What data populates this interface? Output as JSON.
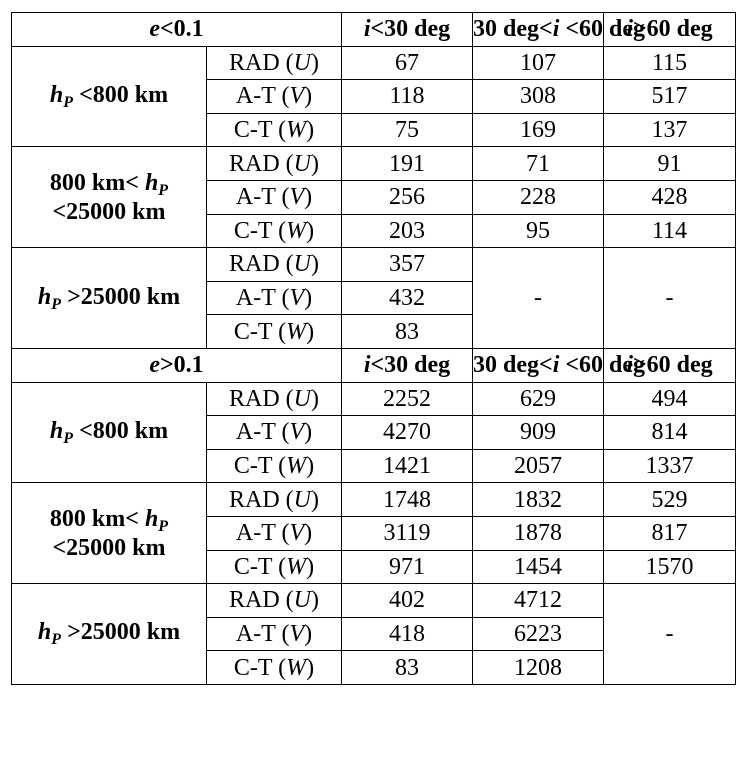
{
  "inclination_headers": [
    {
      "var": "i",
      "text": "<30 deg"
    },
    {
      "pre": "30 deg<",
      "var": "i",
      "post": " <60 deg"
    },
    {
      "var": "i",
      "text": ">60 deg"
    }
  ],
  "sections": [
    {
      "label_var": "e",
      "label_text": "<0.1",
      "groups": [
        {
          "label_html": "hp_lt_800",
          "rows": [
            {
              "name": "RAD (",
              "var": "U",
              "close": ")",
              "values": [
                "67",
                "107",
                "115"
              ]
            },
            {
              "name": "A-T (",
              "var": "V",
              "close": ")",
              "values": [
                "118",
                "308",
                "517"
              ]
            },
            {
              "name": "C-T (",
              "var": "W",
              "close": ")",
              "values": [
                "75",
                "169",
                "137"
              ]
            }
          ]
        },
        {
          "label_html": "hp_800_25000",
          "rows": [
            {
              "name": "RAD (",
              "var": "U",
              "close": ")",
              "values": [
                "191",
                "71",
                "91"
              ]
            },
            {
              "name": "A-T (",
              "var": "V",
              "close": ")",
              "values": [
                "256",
                "228",
                "428"
              ]
            },
            {
              "name": "C-T (",
              "var": "W",
              "close": ")",
              "values": [
                "203",
                "95",
                "114"
              ]
            }
          ]
        },
        {
          "label_html": "hp_gt_25000",
          "rows": [
            {
              "name": "RAD (",
              "var": "U",
              "close": ")",
              "values": [
                "357"
              ]
            },
            {
              "name": "A-T (",
              "var": "V",
              "close": ")",
              "values": [
                "432"
              ]
            },
            {
              "name": "C-T (",
              "var": "W",
              "close": ")",
              "values": [
                "83"
              ]
            }
          ],
          "merged": [
            "-",
            "-"
          ]
        }
      ]
    },
    {
      "label_var": "e",
      "label_text": ">0.1",
      "groups": [
        {
          "label_html": "hp_lt_800",
          "rows": [
            {
              "name": "RAD (",
              "var": "U",
              "close": ")",
              "values": [
                "2252",
                "629",
                "494"
              ]
            },
            {
              "name": "A-T (",
              "var": "V",
              "close": ")",
              "values": [
                "4270",
                "909",
                "814"
              ]
            },
            {
              "name": "C-T (",
              "var": "W",
              "close": ")",
              "values": [
                "1421",
                "2057",
                "1337"
              ]
            }
          ]
        },
        {
          "label_html": "hp_800_25000",
          "rows": [
            {
              "name": "RAD (",
              "var": "U",
              "close": ")",
              "values": [
                "1748",
                "1832",
                "529"
              ]
            },
            {
              "name": "A-T (",
              "var": "V",
              "close": ")",
              "values": [
                "3119",
                "1878",
                "817"
              ]
            },
            {
              "name": "C-T (",
              "var": "W",
              "close": ")",
              "values": [
                "971",
                "1454",
                "1570"
              ]
            }
          ]
        },
        {
          "label_html": "hp_gt_25000",
          "rows": [
            {
              "name": "RAD (",
              "var": "U",
              "close": ")",
              "values": [
                "402",
                "4712"
              ]
            },
            {
              "name": "A-T (",
              "var": "V",
              "close": ")",
              "values": [
                "418",
                "6223"
              ]
            },
            {
              "name": "C-T (",
              "var": "W",
              "close": ")",
              "values": [
                "83",
                "1208"
              ]
            }
          ],
          "merged": [
            "-"
          ]
        }
      ]
    }
  ],
  "group_labels": {
    "h": "h",
    "p": "P",
    "lt_800": " <800 km",
    "mid_pre": "800 km< ",
    "mid_post": "<25000 km",
    "gt_25000": " >25000 km"
  }
}
